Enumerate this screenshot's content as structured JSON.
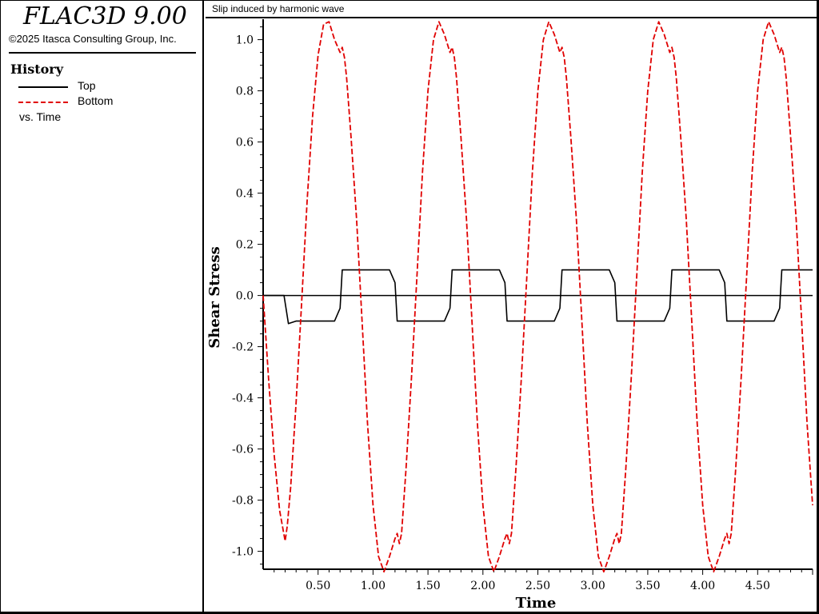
{
  "app": {
    "title": "FLAC3D 9.00",
    "copyright": "©2025 Itasca Consulting Group, Inc."
  },
  "legend": {
    "heading": "History",
    "items": [
      {
        "label": "Top",
        "color": "#000000",
        "style": "solid"
      },
      {
        "label": "Bottom",
        "color": "#e00000",
        "style": "dashed"
      }
    ],
    "vs_label": "vs. Time"
  },
  "plot": {
    "title": "Slip induced by harmonic wave"
  },
  "chart_data": {
    "type": "line",
    "title": "Slip induced by harmonic wave",
    "xlabel": "Time",
    "ylabel": "Shear Stress",
    "xlim": [
      0.0,
      5.0
    ],
    "ylim": [
      -1.07,
      1.08
    ],
    "x_ticks": [
      {
        "value": 0.5,
        "label": "0.50"
      },
      {
        "value": 1.0,
        "label": "1.00"
      },
      {
        "value": 1.5,
        "label": "1.50"
      },
      {
        "value": 2.0,
        "label": "2.00"
      },
      {
        "value": 2.5,
        "label": "2.50"
      },
      {
        "value": 3.0,
        "label": "3.00"
      },
      {
        "value": 3.5,
        "label": "3.50"
      },
      {
        "value": 4.0,
        "label": "4.00"
      },
      {
        "value": 4.5,
        "label": "4.50"
      }
    ],
    "y_ticks": [
      {
        "value": 1.0,
        "label": "1.0"
      },
      {
        "value": 0.8,
        "label": "0.8"
      },
      {
        "value": 0.6,
        "label": "0.6"
      },
      {
        "value": 0.4,
        "label": "0.4"
      },
      {
        "value": 0.2,
        "label": "0.2"
      },
      {
        "value": 0.0,
        "label": "0.0"
      },
      {
        "value": -0.2,
        "label": "-0.2"
      },
      {
        "value": -0.4,
        "label": "-0.4"
      },
      {
        "value": -0.6,
        "label": "-0.6"
      },
      {
        "value": -0.8,
        "label": "-0.8"
      },
      {
        "value": -1.0,
        "label": "-1.0"
      }
    ],
    "series": [
      {
        "name": "Top",
        "color": "#000000",
        "style": "solid",
        "x": [
          0.0,
          0.19,
          0.23,
          0.3,
          0.65,
          0.7,
          0.72,
          0.75,
          1.15,
          1.2,
          1.22,
          1.25,
          1.65,
          1.7,
          1.72,
          1.75,
          2.15,
          2.2,
          2.22,
          2.25,
          2.65,
          2.7,
          2.72,
          2.75,
          3.15,
          3.2,
          3.22,
          3.25,
          3.65,
          3.7,
          3.72,
          3.75,
          4.15,
          4.2,
          4.22,
          4.25,
          4.65,
          4.7,
          4.72,
          4.75,
          5.0
        ],
        "y": [
          0.0,
          0.0,
          -0.11,
          -0.1,
          -0.1,
          -0.05,
          0.1,
          0.1,
          0.1,
          0.05,
          -0.1,
          -0.1,
          -0.1,
          -0.05,
          0.1,
          0.1,
          0.1,
          0.05,
          -0.1,
          -0.1,
          -0.1,
          -0.05,
          0.1,
          0.1,
          0.1,
          0.05,
          -0.1,
          -0.1,
          -0.1,
          -0.05,
          0.1,
          0.1,
          0.1,
          0.05,
          -0.1,
          -0.1,
          -0.1,
          -0.05,
          0.1,
          0.1,
          0.1
        ]
      },
      {
        "name": "Bottom",
        "color": "#e00000",
        "style": "dashed",
        "x": [
          0.0,
          0.05,
          0.1,
          0.15,
          0.2,
          0.22,
          0.25,
          0.3,
          0.35,
          0.4,
          0.45,
          0.5,
          0.55,
          0.6,
          0.65,
          0.7,
          0.72,
          0.74,
          0.76,
          0.8,
          0.85,
          0.9,
          0.95,
          1.0,
          1.05,
          1.1,
          1.15,
          1.2,
          1.22,
          1.24,
          1.26,
          1.3,
          1.35,
          1.4,
          1.45,
          1.5,
          1.55,
          1.6,
          1.65,
          1.7,
          1.72,
          1.74,
          1.76,
          1.8,
          1.85,
          1.9,
          1.95,
          2.0,
          2.05,
          2.1,
          2.15,
          2.2,
          2.22,
          2.24,
          2.26,
          2.3,
          2.35,
          2.4,
          2.45,
          2.5,
          2.55,
          2.6,
          2.65,
          2.7,
          2.72,
          2.74,
          2.76,
          2.8,
          2.85,
          2.9,
          2.95,
          3.0,
          3.05,
          3.1,
          3.15,
          3.2,
          3.22,
          3.24,
          3.26,
          3.3,
          3.35,
          3.4,
          3.45,
          3.5,
          3.55,
          3.6,
          3.65,
          3.7,
          3.72,
          3.74,
          3.76,
          3.8,
          3.85,
          3.9,
          3.95,
          4.0,
          4.05,
          4.1,
          4.15,
          4.2,
          4.22,
          4.24,
          4.26,
          4.3,
          4.35,
          4.4,
          4.45,
          4.5,
          4.55,
          4.6,
          4.65,
          4.7,
          4.72,
          4.74,
          4.76,
          4.8,
          4.85,
          4.9,
          4.95,
          5.0
        ],
        "y": [
          0.0,
          -0.33,
          -0.62,
          -0.84,
          -0.96,
          -0.9,
          -0.75,
          -0.42,
          -0.03,
          0.37,
          0.7,
          0.94,
          1.06,
          1.07,
          1.0,
          0.95,
          0.97,
          0.93,
          0.85,
          0.62,
          0.3,
          -0.1,
          -0.5,
          -0.82,
          -1.02,
          -1.08,
          -1.02,
          -0.95,
          -0.93,
          -0.97,
          -0.93,
          -0.68,
          -0.32,
          0.08,
          0.48,
          0.8,
          1.0,
          1.07,
          1.02,
          0.95,
          0.97,
          0.93,
          0.85,
          0.62,
          0.3,
          -0.1,
          -0.5,
          -0.82,
          -1.02,
          -1.08,
          -1.02,
          -0.95,
          -0.93,
          -0.97,
          -0.93,
          -0.68,
          -0.32,
          0.08,
          0.48,
          0.8,
          1.0,
          1.07,
          1.02,
          0.95,
          0.97,
          0.93,
          0.85,
          0.62,
          0.3,
          -0.1,
          -0.5,
          -0.82,
          -1.02,
          -1.08,
          -1.02,
          -0.95,
          -0.93,
          -0.97,
          -0.93,
          -0.68,
          -0.32,
          0.08,
          0.48,
          0.8,
          1.0,
          1.07,
          1.02,
          0.95,
          0.97,
          0.93,
          0.85,
          0.62,
          0.3,
          -0.1,
          -0.5,
          -0.82,
          -1.02,
          -1.08,
          -1.02,
          -0.95,
          -0.93,
          -0.97,
          -0.93,
          -0.68,
          -0.32,
          0.08,
          0.48,
          0.8,
          1.0,
          1.07,
          1.02,
          0.95,
          0.97,
          0.93,
          0.85,
          0.62,
          0.3,
          -0.1,
          -0.5,
          -0.82
        ]
      }
    ],
    "grid": false,
    "legend_position": "left-panel"
  }
}
